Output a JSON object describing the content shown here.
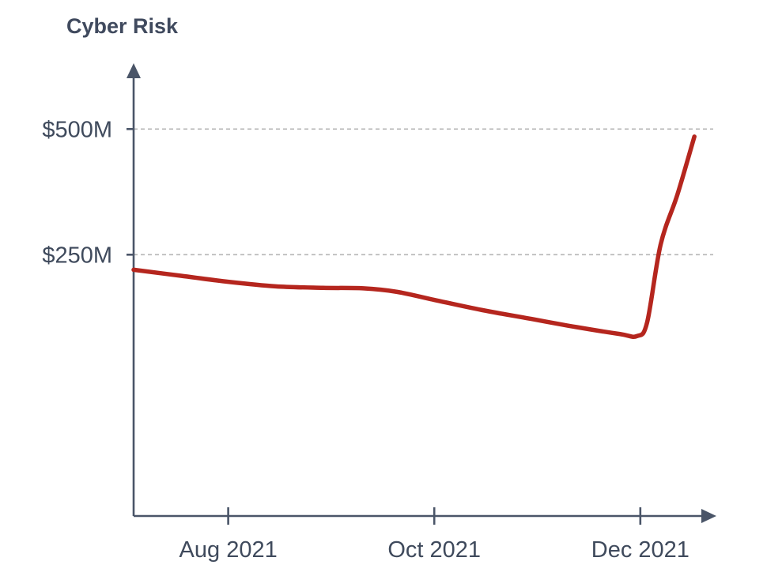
{
  "chart_data": {
    "type": "line",
    "ylabel": "Cyber Risk",
    "xlabel": "",
    "title": "",
    "x_ticks": [
      {
        "date": "2021-08-01",
        "label": "Aug 2021"
      },
      {
        "date": "2021-10-01",
        "label": "Oct 2021"
      },
      {
        "date": "2021-12-01",
        "label": "Dec 2021"
      }
    ],
    "y_ticks": [
      {
        "value": 250,
        "label": "$250M"
      },
      {
        "value": 500,
        "label": "$500M"
      }
    ],
    "y_unit": "$M",
    "xlim": [
      "2021-07-04",
      "2021-12-20"
    ],
    "ylim": [
      -270,
      620
    ],
    "grid": "horizontal dashed at y ticks",
    "series": [
      {
        "color": "#b5261e",
        "points": [
          {
            "x": "2021-07-04",
            "y": 220
          },
          {
            "x": "2021-07-18",
            "y": 208
          },
          {
            "x": "2021-08-01",
            "y": 196
          },
          {
            "x": "2021-08-15",
            "y": 187
          },
          {
            "x": "2021-08-29",
            "y": 184
          },
          {
            "x": "2021-09-10",
            "y": 183
          },
          {
            "x": "2021-09-20",
            "y": 176
          },
          {
            "x": "2021-10-01",
            "y": 160
          },
          {
            "x": "2021-10-15",
            "y": 140
          },
          {
            "x": "2021-10-29",
            "y": 123
          },
          {
            "x": "2021-11-12",
            "y": 106
          },
          {
            "x": "2021-11-25",
            "y": 92
          },
          {
            "x": "2021-11-30",
            "y": 88
          },
          {
            "x": "2021-12-03",
            "y": 115
          },
          {
            "x": "2021-12-07",
            "y": 270
          },
          {
            "x": "2021-12-12",
            "y": 370
          },
          {
            "x": "2021-12-17",
            "y": 485
          }
        ]
      }
    ]
  }
}
